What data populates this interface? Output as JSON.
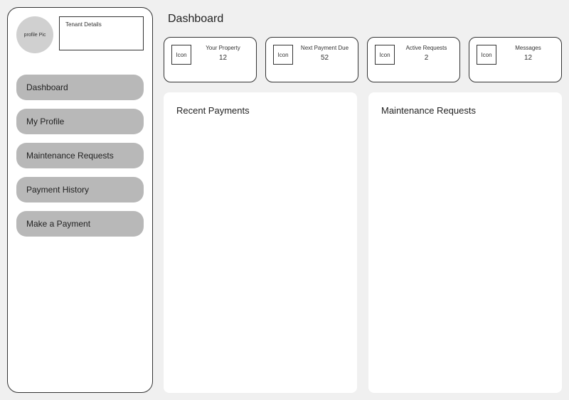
{
  "sidebar": {
    "profile_pic_label": "profile Pic",
    "tenant_details_label": "Tenant Details",
    "nav": [
      {
        "label": "Dashboard"
      },
      {
        "label": "My Profile"
      },
      {
        "label": "Maintenance Requests"
      },
      {
        "label": "Payment History"
      },
      {
        "label": "Make a Payment"
      }
    ]
  },
  "main": {
    "title": "Dashboard",
    "stats": [
      {
        "icon": "Icon",
        "label": "Your Property",
        "value": "12"
      },
      {
        "icon": "Icon",
        "label": "Next Payment Due",
        "value": "52"
      },
      {
        "icon": "Icon",
        "label": "Active Requests",
        "value": "2"
      },
      {
        "icon": "Icon",
        "label": "Messages",
        "value": "12"
      }
    ],
    "panels": {
      "recent_payments_title": "Recent Payments",
      "maintenance_requests_title": "Maintenance Requests"
    }
  }
}
